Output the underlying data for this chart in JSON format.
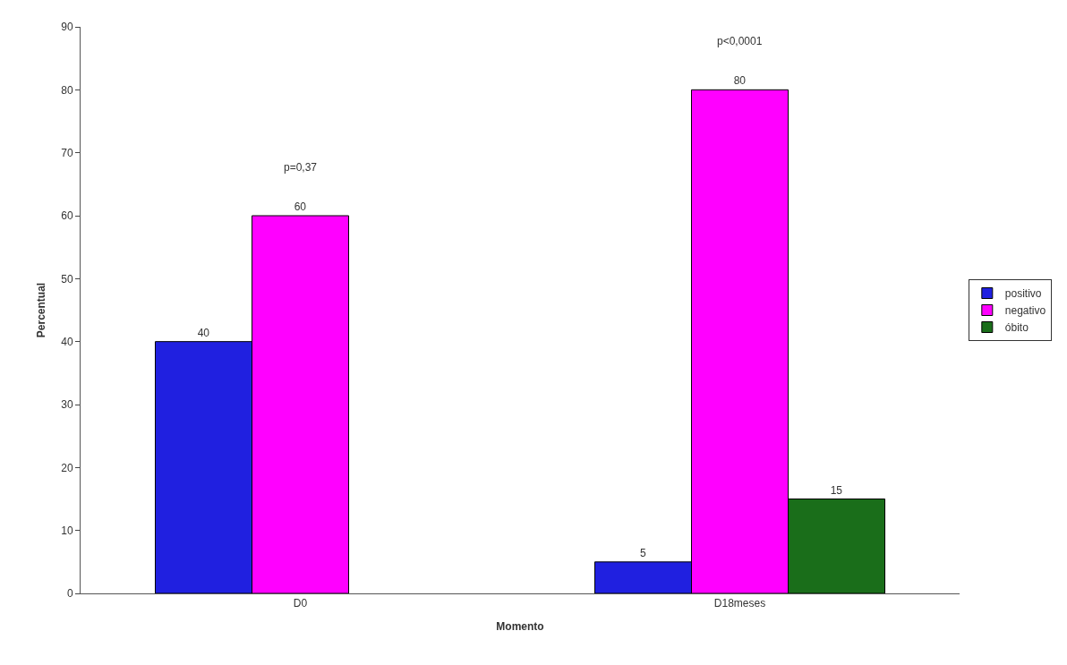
{
  "chart_data": {
    "type": "bar",
    "xlabel": "Momento",
    "ylabel": "Percentual",
    "categories": [
      "D0",
      "D18meses"
    ],
    "series": [
      {
        "name": "positivo",
        "color": "#2020e0",
        "values": [
          40,
          5
        ]
      },
      {
        "name": "negativo",
        "color": "#ff00ff",
        "values": [
          60,
          80
        ]
      },
      {
        "name": "óbito",
        "color": "#1a6e1a",
        "values": [
          null,
          15
        ]
      }
    ],
    "ylim": [
      0,
      90
    ],
    "yticks": [
      0,
      10,
      20,
      30,
      40,
      50,
      60,
      70,
      80,
      90
    ],
    "data_labels": true,
    "legend": "right",
    "annotations": [
      "p=0,37",
      "p<0,0001"
    ]
  }
}
